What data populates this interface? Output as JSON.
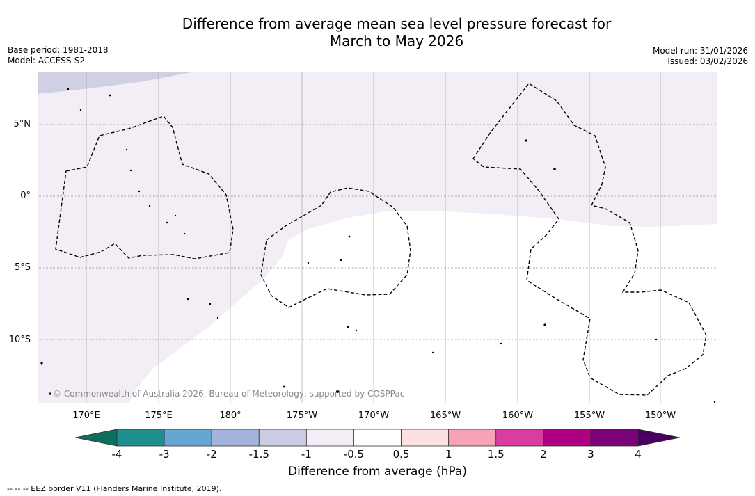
{
  "title_line1": "Difference from average mean sea level pressure forecast for",
  "title_line2": "March to May 2026",
  "meta_left": {
    "base_period": "Base period: 1981-2018",
    "model": "Model: ACCESS-S2"
  },
  "meta_right": {
    "model_run": "Model run: 31/01/2026",
    "issued": "Issued: 03/02/2026"
  },
  "lat_labels": [
    "5°N",
    "0°",
    "5°S",
    "10°S"
  ],
  "lon_labels": [
    "170°E",
    "175°E",
    "180°",
    "175°W",
    "170°W",
    "165°W",
    "160°W",
    "155°W",
    "150°W"
  ],
  "copyright": "© Commonwealth of Australia 2026, Bureau of Meteorology, supported by COSPPac",
  "colorbar": {
    "ticks": [
      "-4",
      "-3",
      "-2",
      "-1.5",
      "-1",
      "-0.5",
      "0.5",
      "1",
      "1.5",
      "2",
      "3",
      "4"
    ],
    "colors": [
      "#1e8e8e",
      "#66a6d2",
      "#a4b4da",
      "#cccde4",
      "#f3edf6",
      "#ffffff",
      "#fde1e0",
      "#f7a2b5",
      "#d93da0",
      "#ae0082",
      "#7a0177"
    ],
    "under_color": "#0e6e5e",
    "over_color": "#4a0060",
    "label": "Difference from average (hPa)"
  },
  "map_colors": {
    "band_minus1_5": "#cfd0e4",
    "band_minus1": "#f3edf6",
    "band_neutral": "#ffffff"
  },
  "legend": "--  --  -- EEZ border V11 (Flanders Marine Institute, 2019)."
}
